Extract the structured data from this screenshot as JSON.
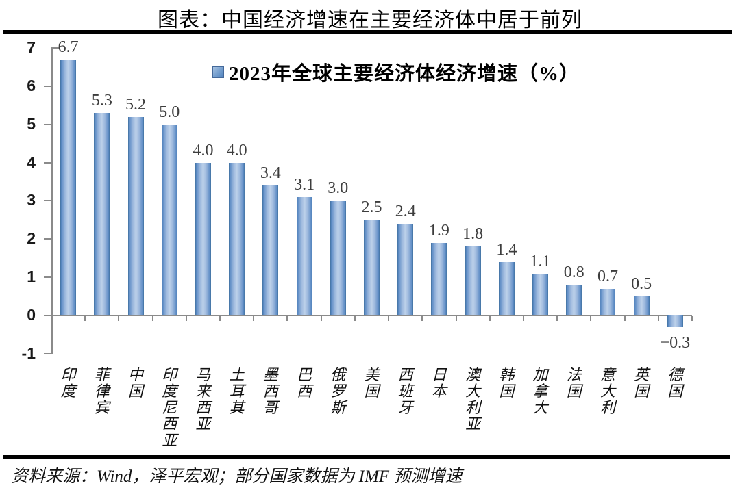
{
  "page": {
    "title": "图表：中国经济增速在主要经济体中居于前列"
  },
  "chart_data": {
    "type": "bar",
    "title": "图表：中国经济增速在主要经济体中居于前列",
    "legend": "2023年全球主要经济体经济增速（%）",
    "legend_position": "top-center",
    "categories": [
      "印度",
      "菲律宾",
      "中国",
      "印度尼西亚",
      "马来西亚",
      "土耳其",
      "墨西哥",
      "巴西",
      "俄罗斯",
      "美国",
      "西班牙",
      "日本",
      "澳大利亚",
      "韩国",
      "加拿大",
      "法国",
      "意大利",
      "英国",
      "德国"
    ],
    "values": [
      6.7,
      5.3,
      5.2,
      5.0,
      4.0,
      4.0,
      3.4,
      3.1,
      3.0,
      2.5,
      2.4,
      1.9,
      1.8,
      1.4,
      1.1,
      0.8,
      0.7,
      0.5,
      -0.3
    ],
    "value_labels": [
      "6.7",
      "5.3",
      "5.2",
      "5.0",
      "4.0",
      "4.0",
      "3.4",
      "3.1",
      "3.0",
      "2.5",
      "2.4",
      "1.9",
      "1.8",
      "1.4",
      "1.1",
      "0.8",
      "0.7",
      "0.5",
      "−0.3"
    ],
    "xlabel": "",
    "ylabel": "",
    "ylim": [
      -1,
      7
    ],
    "yticks": [
      7,
      6,
      5,
      4,
      3,
      2,
      1,
      0,
      -1
    ],
    "grid": false,
    "colors": {
      "bar_edge": "#4f81bd",
      "bar_center": "#bdd1ea",
      "axis": "#8a8a8a",
      "value_label": "#3d3d3d",
      "text": "#000000"
    }
  },
  "source": {
    "text": "资料来源：Wind，泽平宏观；部分国家数据为 IMF 预测增速"
  }
}
